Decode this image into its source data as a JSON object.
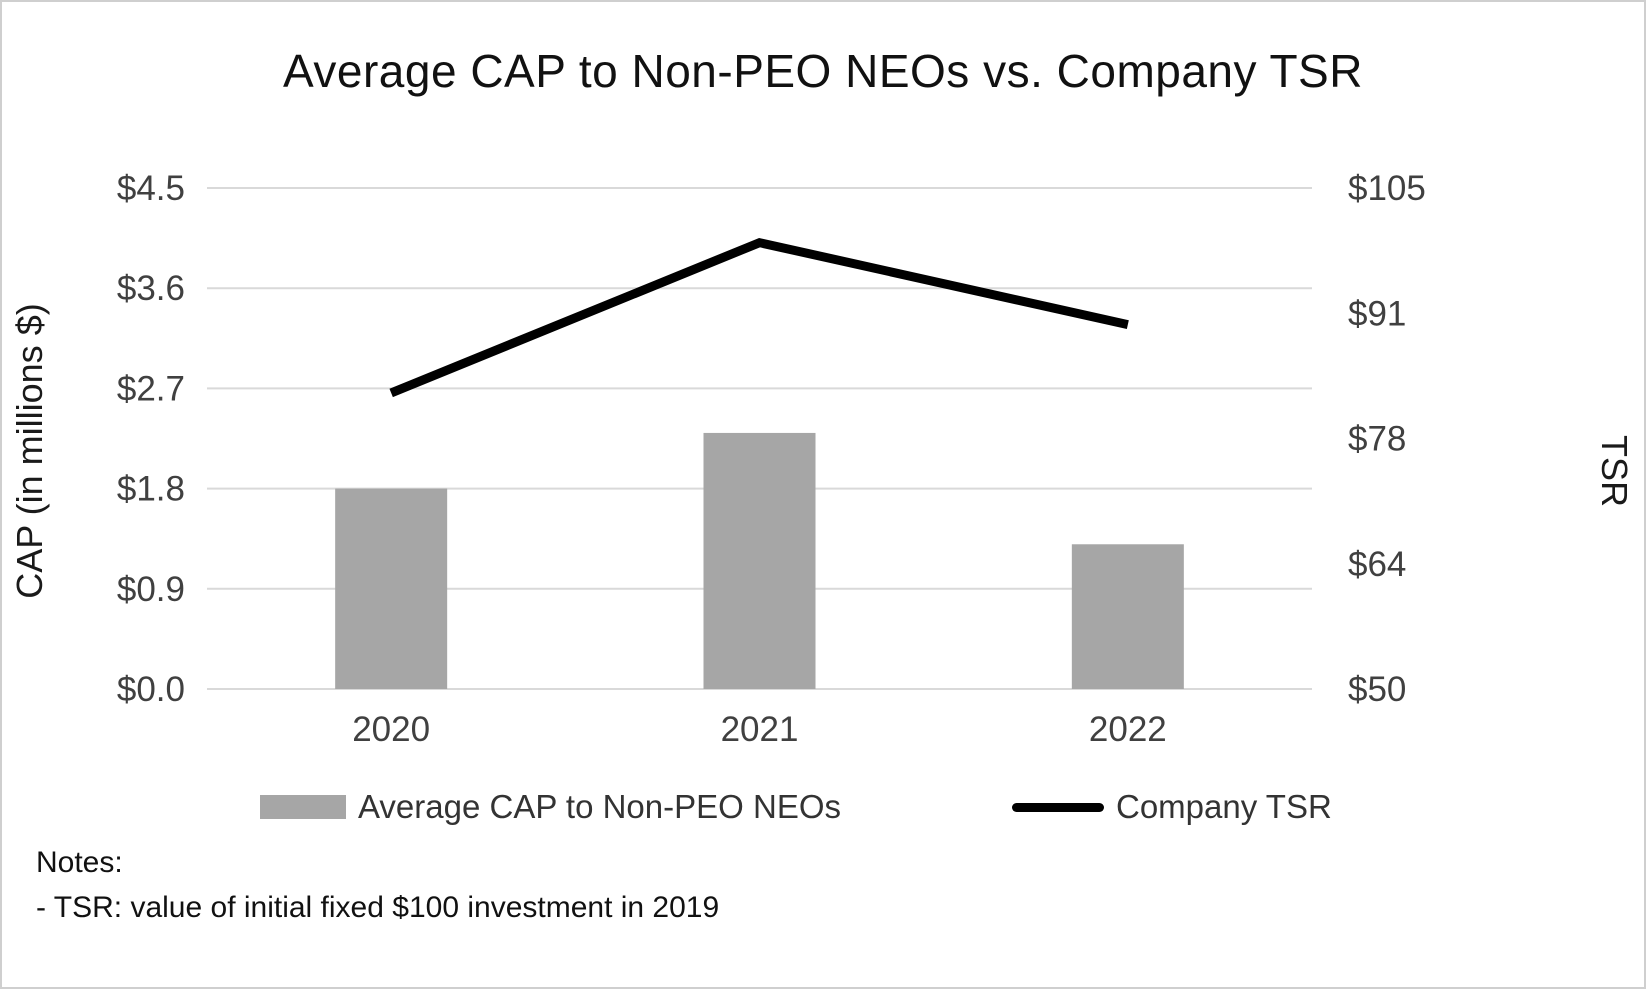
{
  "title": "Average CAP to Non-PEO NEOs vs. Company TSR",
  "notes": {
    "heading": "Notes:",
    "line1": "- TSR: value of initial fixed $100 investment in 2019"
  },
  "chart_data": {
    "type": "combo",
    "categories": [
      "2020",
      "2021",
      "2022"
    ],
    "series": [
      {
        "name": "Average CAP to Non-PEO NEOs",
        "type": "bar",
        "axis": "left",
        "values": [
          1.8,
          2.3,
          1.3
        ],
        "color": "#a6a6a6"
      },
      {
        "name": "Company TSR",
        "type": "line",
        "axis": "right",
        "values": [
          82.5,
          99,
          90
        ],
        "color": "#000000"
      }
    ],
    "left_axis": {
      "label": "CAP (in millions $)",
      "ticks": [
        "$0.0",
        "$0.9",
        "$1.8",
        "$2.7",
        "$3.6",
        "$4.5"
      ],
      "min": 0,
      "max": 4.5
    },
    "right_axis": {
      "label": "TSR",
      "ticks": [
        "$50",
        "$64",
        "$78",
        "$91",
        "$105"
      ],
      "min": 50,
      "max": 105
    },
    "grid": true,
    "gridline_color": "#d9d9d9",
    "tick_color": "#404040",
    "legend_position": "bottom"
  }
}
